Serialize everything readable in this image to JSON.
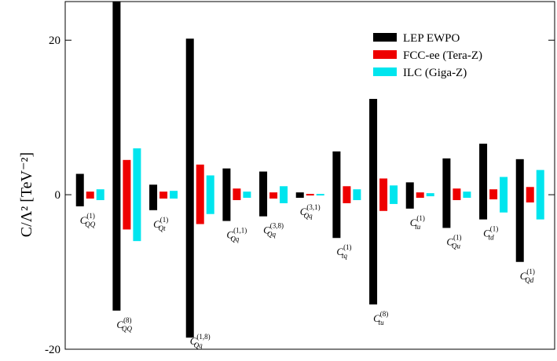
{
  "chart_data": {
    "type": "bar",
    "ylabel": "C/Λ² [TeV⁻²]",
    "ylim": [
      -20,
      25
    ],
    "yticks": [
      -20,
      0,
      20
    ],
    "ytick_labels": [
      "-20",
      "0",
      "20"
    ],
    "legend_position": "top-right",
    "categories": [
      {
        "base": "C",
        "sub": "QQ",
        "sup": "(1)"
      },
      {
        "base": "C",
        "sub": "QQ",
        "sup": "(8)"
      },
      {
        "base": "C",
        "sub": "Qt",
        "sup": "(1)"
      },
      {
        "base": "C",
        "sub": "Qq",
        "sup": "(1,8)"
      },
      {
        "base": "C",
        "sub": "Qq",
        "sup": "(1,1)"
      },
      {
        "base": "C",
        "sub": "Qq",
        "sup": "(3,8)"
      },
      {
        "base": "C",
        "sub": "Qq",
        "sup": "(3,1)"
      },
      {
        "base": "C",
        "sub": "tq",
        "sup": "(1)"
      },
      {
        "base": "C",
        "sub": "tu",
        "sup": "(8)"
      },
      {
        "base": "C",
        "sub": "tu",
        "sup": "(1)"
      },
      {
        "base": "C",
        "sub": "Qu",
        "sup": "(1)"
      },
      {
        "base": "C",
        "sub": "td",
        "sup": "(1)"
      },
      {
        "base": "C",
        "sub": "Qd",
        "sup": "(1)"
      }
    ],
    "series": [
      {
        "name": "LEP EWPO",
        "color": "#000000",
        "ranges": [
          [
            -1.5,
            2.7
          ],
          [
            -15,
            25
          ],
          [
            -2.0,
            1.3
          ],
          [
            -18.5,
            20.2
          ],
          [
            -3.4,
            3.4
          ],
          [
            -2.8,
            3.0
          ],
          [
            -0.4,
            0.3
          ],
          [
            -5.6,
            5.6
          ],
          [
            -14.2,
            12.4
          ],
          [
            -1.8,
            1.6
          ],
          [
            -4.3,
            4.7
          ],
          [
            -3.2,
            6.6
          ],
          [
            -8.7,
            4.6
          ]
        ]
      },
      {
        "name": "FCC-ee (Tera-Z)",
        "color": "#ee0000",
        "ranges": [
          [
            -0.5,
            0.4
          ],
          [
            -4.5,
            4.5
          ],
          [
            -0.5,
            0.4
          ],
          [
            -3.8,
            3.9
          ],
          [
            -0.7,
            0.8
          ],
          [
            -0.5,
            0.3
          ],
          [
            -0.1,
            0.1
          ],
          [
            -1.1,
            1.1
          ],
          [
            -2.1,
            2.1
          ],
          [
            -0.4,
            0.3
          ],
          [
            -0.7,
            0.8
          ],
          [
            -0.6,
            0.7
          ],
          [
            -1.0,
            1.0
          ]
        ]
      },
      {
        "name": "ILC (Giga-Z)",
        "color": "#00e5ee",
        "ranges": [
          [
            -0.7,
            0.7
          ],
          [
            -6.0,
            6.0
          ],
          [
            -0.5,
            0.5
          ],
          [
            -2.5,
            2.5
          ],
          [
            -0.4,
            0.4
          ],
          [
            -1.1,
            1.1
          ],
          [
            -0.1,
            0.1
          ],
          [
            -0.7,
            0.7
          ],
          [
            -1.2,
            1.2
          ],
          [
            -0.2,
            0.2
          ],
          [
            -0.4,
            0.4
          ],
          [
            -2.3,
            2.3
          ],
          [
            -3.2,
            3.2
          ]
        ]
      }
    ]
  }
}
